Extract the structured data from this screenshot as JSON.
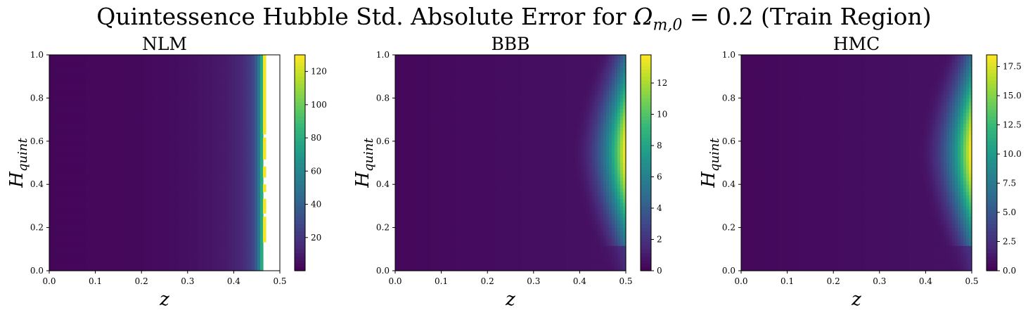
{
  "figure": {
    "title_prefix": "Quintessence Hubble Std. Absolute Error for ",
    "title_math": "Ω",
    "title_math_sub": "m,0",
    "title_suffix": " = 0.2 (Train Region)"
  },
  "chart_data": [
    {
      "type": "heatmap",
      "title": "NLM",
      "xlabel": "z",
      "ylabel": "H_quint",
      "ylabel_main": "H",
      "ylabel_sub": "quint",
      "xlim": [
        0.0,
        0.5
      ],
      "ylim": [
        0.0,
        1.0
      ],
      "xticks": [
        "0.0",
        "0.1",
        "0.2",
        "0.3",
        "0.4",
        "0.5"
      ],
      "yticks": [
        "0.0",
        "0.2",
        "0.4",
        "0.6",
        "0.8",
        "1.0"
      ],
      "colormap": "viridis",
      "colorbar_range": [
        0,
        130
      ],
      "colorbar_ticks": [
        "20",
        "40",
        "60",
        "80",
        "100",
        "120"
      ],
      "colorbar_tick_values": [
        20,
        40,
        60,
        80,
        100,
        120
      ],
      "nan_region": "z > 0.465 (white, no data), intermittent yellow column near z = 0.465",
      "profile_z": [
        0.0,
        0.2,
        0.3,
        0.38,
        0.42,
        0.44,
        0.45,
        0.455,
        0.46,
        0.465
      ],
      "profile_value": [
        2,
        3,
        5,
        9,
        15,
        25,
        40,
        55,
        75,
        125
      ]
    },
    {
      "type": "heatmap",
      "title": "BBB",
      "xlabel": "z",
      "ylabel": "H_quint",
      "ylabel_main": "H",
      "ylabel_sub": "quint",
      "xlim": [
        0.0,
        0.5
      ],
      "ylim": [
        0.0,
        1.0
      ],
      "xticks": [
        "0.0",
        "0.1",
        "0.2",
        "0.3",
        "0.4",
        "0.5"
      ],
      "yticks": [
        "0.0",
        "0.2",
        "0.4",
        "0.6",
        "0.8",
        "1.0"
      ],
      "colormap": "viridis",
      "colorbar_range": [
        0,
        13.8
      ],
      "colorbar_ticks": [
        "0",
        "2",
        "4",
        "6",
        "8",
        "10",
        "12"
      ],
      "colorbar_tick_values": [
        0,
        2,
        4,
        6,
        8,
        10,
        12
      ],
      "peak_value_at": {
        "z": 0.5,
        "H_quint": 0.5,
        "value": 13.5
      }
    },
    {
      "type": "heatmap",
      "title": "HMC",
      "xlabel": "z",
      "ylabel": "H_quint",
      "ylabel_main": "H",
      "ylabel_sub": "quint",
      "xlim": [
        0.0,
        0.5
      ],
      "ylim": [
        0.0,
        1.0
      ],
      "xticks": [
        "0.0",
        "0.1",
        "0.2",
        "0.3",
        "0.4",
        "0.5"
      ],
      "yticks": [
        "0.0",
        "0.2",
        "0.4",
        "0.6",
        "0.8",
        "1.0"
      ],
      "colormap": "viridis",
      "colorbar_range": [
        0,
        18.5
      ],
      "colorbar_ticks": [
        "0.0",
        "2.5",
        "5.0",
        "7.5",
        "10.0",
        "12.5",
        "15.0",
        "17.5"
      ],
      "colorbar_tick_values": [
        0,
        2.5,
        5.0,
        7.5,
        10.0,
        12.5,
        15.0,
        17.5
      ],
      "peak_value_at": {
        "z": 0.5,
        "H_quint": 0.5,
        "value": 18.2
      }
    }
  ]
}
